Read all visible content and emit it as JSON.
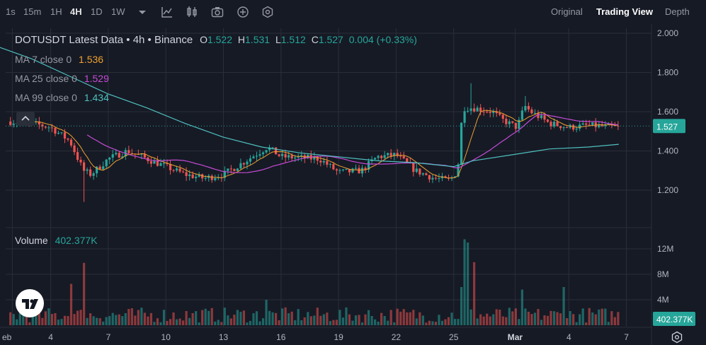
{
  "toolbar": {
    "timeframes": [
      "1s",
      "15m",
      "1H",
      "4H",
      "1D",
      "1W"
    ],
    "active_timeframe": "4H",
    "views": [
      "Original",
      "Trading View",
      "Depth"
    ],
    "active_view": "Trading View",
    "icons": [
      "chevron-down-icon",
      "indicators-icon",
      "candle-style-icon",
      "camera-icon",
      "plus-circle-icon",
      "settings-hex-icon"
    ]
  },
  "legend": {
    "title": "DOTUSDT Latest Data • 4h • Binance",
    "open": "1.522",
    "high": "1.531",
    "low": "1.512",
    "close": "1.527",
    "change": "0.004 (+0.33%)",
    "ma7_label": "MA 7 close 0",
    "ma7_value": "1.536",
    "ma25_label": "MA 25 close 0",
    "ma25_value": "1.529",
    "ma99_label": "MA 99 close 0",
    "ma99_value": "1.434",
    "volume_label": "Volume",
    "volume_value": "402.377K"
  },
  "colors": {
    "background": "#161a25",
    "grid": "#2a2e39",
    "up": "#26a69a",
    "down": "#ef5350",
    "ma7": "#f0a030",
    "ma25": "#c54bd6",
    "ma99": "#4ec0bf"
  },
  "chart_data": [
    {
      "type": "candlestick",
      "title": "DOTUSDT Latest Data • 4h • Binance",
      "x_tick_labels": [
        "eb",
        "4",
        "7",
        "10",
        "13",
        "16",
        "19",
        "22",
        "25",
        "Mar",
        "4",
        "7"
      ],
      "y_ticks": [
        "1.200",
        "1.400",
        "1.600",
        "1.800",
        "2.000"
      ],
      "ylim": [
        1.05,
        2.07
      ],
      "last_price": 1.527,
      "last_price_label": "1.527",
      "anchors": [
        {
          "day": 2.0,
          "price": 1.55
        },
        {
          "day": 3.0,
          "price": 1.54
        },
        {
          "day": 4.0,
          "price": 1.52
        },
        {
          "day": 5.0,
          "price": 1.45
        },
        {
          "day": 5.7,
          "price": 1.3
        },
        {
          "day": 6.1,
          "price": 1.28
        },
        {
          "day": 7.0,
          "price": 1.36
        },
        {
          "day": 8.0,
          "price": 1.4
        },
        {
          "day": 9.5,
          "price": 1.34
        },
        {
          "day": 11.0,
          "price": 1.28
        },
        {
          "day": 12.0,
          "price": 1.26
        },
        {
          "day": 13.0,
          "price": 1.28
        },
        {
          "day": 14.0,
          "price": 1.34
        },
        {
          "day": 15.3,
          "price": 1.42
        },
        {
          "day": 16.0,
          "price": 1.37
        },
        {
          "day": 18.0,
          "price": 1.36
        },
        {
          "day": 19.0,
          "price": 1.29
        },
        {
          "day": 20.2,
          "price": 1.3
        },
        {
          "day": 21.0,
          "price": 1.37
        },
        {
          "day": 22.0,
          "price": 1.38
        },
        {
          "day": 23.0,
          "price": 1.3
        },
        {
          "day": 24.0,
          "price": 1.26
        },
        {
          "day": 24.8,
          "price": 1.25
        },
        {
          "day": 25.2,
          "price": 1.3
        },
        {
          "day": 25.5,
          "price": 1.62
        },
        {
          "day": 26.0,
          "price": 1.62
        },
        {
          "day": 27.0,
          "price": 1.6
        },
        {
          "day": 27.5,
          "price": 1.56
        },
        {
          "day": 28.3,
          "price": 1.52
        },
        {
          "day": 28.7,
          "price": 1.63
        },
        {
          "day": 29.0,
          "price": 1.6
        },
        {
          "day": 30.0,
          "price": 1.54
        },
        {
          "day": 31.0,
          "price": 1.52
        },
        {
          "day": 32.0,
          "price": 1.53
        },
        {
          "day": 33.6,
          "price": 1.52
        }
      ],
      "ma99_points": [
        {
          "day": 1.0,
          "price": 1.94
        },
        {
          "day": 3.0,
          "price": 1.87
        },
        {
          "day": 5.0,
          "price": 1.78
        },
        {
          "day": 7.0,
          "price": 1.69
        },
        {
          "day": 9.0,
          "price": 1.62
        },
        {
          "day": 11.0,
          "price": 1.54
        },
        {
          "day": 13.0,
          "price": 1.47
        },
        {
          "day": 15.0,
          "price": 1.42
        },
        {
          "day": 17.0,
          "price": 1.39
        },
        {
          "day": 19.0,
          "price": 1.37
        },
        {
          "day": 21.0,
          "price": 1.35
        },
        {
          "day": 23.0,
          "price": 1.34
        },
        {
          "day": 25.0,
          "price": 1.32
        },
        {
          "day": 26.0,
          "price": 1.35
        },
        {
          "day": 28.0,
          "price": 1.38
        },
        {
          "day": 30.0,
          "price": 1.41
        },
        {
          "day": 32.0,
          "price": 1.42
        },
        {
          "day": 33.6,
          "price": 1.434
        }
      ],
      "volume": {
        "y_ticks": [
          "4M",
          "8M",
          "12M"
        ],
        "ylim": [
          0,
          14.5
        ],
        "last_label": "402.377K",
        "spikes": [
          {
            "day": 5.7,
            "value": 9.8,
            "dir": "down"
          },
          {
            "day": 5.1,
            "value": 6.5,
            "dir": "down"
          },
          {
            "day": 25.6,
            "value": 13.5,
            "dir": "up"
          },
          {
            "day": 25.8,
            "value": 13.0,
            "dir": "down"
          },
          {
            "day": 26.0,
            "value": 9.9,
            "dir": "down"
          },
          {
            "day": 25.4,
            "value": 6.0,
            "dir": "up"
          },
          {
            "day": 28.6,
            "value": 5.6,
            "dir": "up"
          },
          {
            "day": 30.7,
            "value": 6.0,
            "dir": "up"
          },
          {
            "day": 15.3,
            "value": 4.0,
            "dir": "up"
          }
        ]
      }
    }
  ]
}
